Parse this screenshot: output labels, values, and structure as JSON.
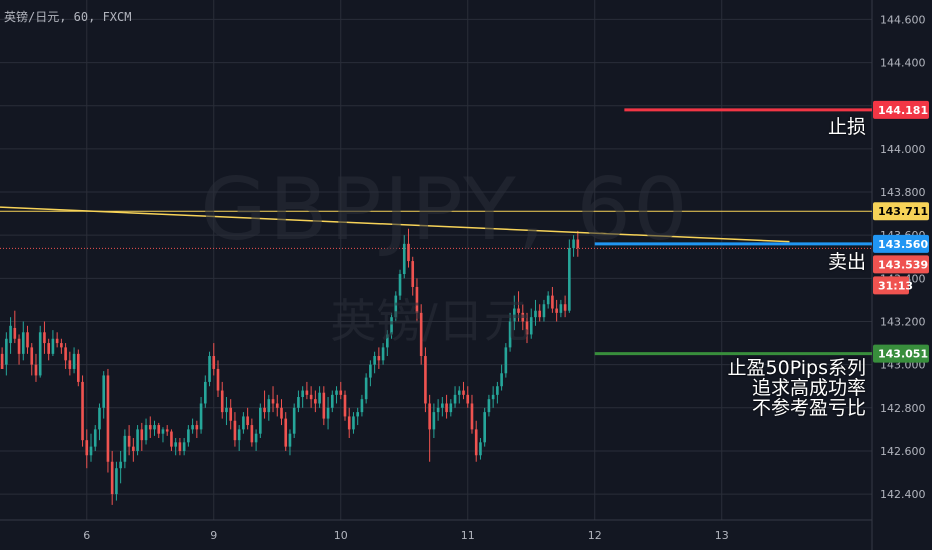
{
  "symbol_text": "英镑/日元, 60, FXCM",
  "watermark": {
    "main": "GBPJPY, 60",
    "sub": "英镑/日元"
  },
  "annotations": {
    "stop_loss": "止损",
    "sell": "卖出",
    "take_profit_lines": [
      "止盈50Pips系列",
      "追求高成功率",
      "不参考盈亏比"
    ]
  },
  "colors": {
    "background": "#131722",
    "grid": "#2a2e39",
    "up": "#26a69a",
    "down": "#ef5350",
    "stop_loss": "#f23645",
    "sell": "#2196f3",
    "take_profit": "#388e3c",
    "trendline": "#f7d358",
    "resistance": "#f7d358",
    "current_price": "#ef5350",
    "axis_text": "#b2b5be"
  },
  "chart_data": {
    "type": "candlestick",
    "title": "GBPJPY, 60",
    "xlabel": "",
    "ylabel": "",
    "ylim": [
      142.28,
      144.69
    ],
    "y_ticks": [
      142.4,
      142.6,
      142.8,
      143.0,
      143.2,
      143.4,
      143.6,
      143.8,
      144.0,
      144.2,
      144.4,
      144.6
    ],
    "y_tick_labels": [
      "142.400",
      "142.600",
      "142.800",
      "143.000",
      "143.200",
      "143.400",
      "143.600",
      "143.800",
      "144.000",
      "144.200",
      "144.400",
      "144.600"
    ],
    "x_tick_labels": [
      "6",
      "9",
      "10",
      "11",
      "12",
      "13"
    ],
    "x_tick_index": [
      20,
      50,
      80,
      110,
      140,
      170
    ],
    "total_slots": 206,
    "price_labels": [
      {
        "name": "stop-loss",
        "value": "144.181",
        "color": "#f23645",
        "text": "#ffffff"
      },
      {
        "name": "resistance",
        "value": "143.711",
        "color": "#f7d358",
        "text": "#000000"
      },
      {
        "name": "sell",
        "value": "143.560",
        "color": "#2196f3",
        "text": "#ffffff"
      },
      {
        "name": "current-price",
        "value": "143.539",
        "color": "#ef5350",
        "text": "#ffffff"
      },
      {
        "name": "countdown",
        "value": "31:13",
        "color": "#ef5350",
        "text": "#ffffff"
      },
      {
        "name": "take-profit",
        "value": "143.051",
        "color": "#388e3c",
        "text": "#ffffff"
      }
    ],
    "levels": {
      "stop_loss": 144.181,
      "resistance": 143.711,
      "sell": 143.56,
      "current": 143.539,
      "take_profit": 143.051
    },
    "trendline": {
      "start": [
        0,
        143.73
      ],
      "end": [
        186,
        143.57
      ]
    },
    "ohlc": [
      [
        143.05,
        143.08,
        142.98,
        142.98
      ],
      [
        143.0,
        143.15,
        142.95,
        143.12
      ],
      [
        143.1,
        143.22,
        143.05,
        143.18
      ],
      [
        143.17,
        143.25,
        143.1,
        143.12
      ],
      [
        143.12,
        143.14,
        143.0,
        143.05
      ],
      [
        143.05,
        143.2,
        143.02,
        143.15
      ],
      [
        143.15,
        143.18,
        143.05,
        143.08
      ],
      [
        143.08,
        143.1,
        142.95,
        143.0
      ],
      [
        143.0,
        143.05,
        142.92,
        142.95
      ],
      [
        142.95,
        143.18,
        142.94,
        143.15
      ],
      [
        143.15,
        143.2,
        143.05,
        143.1
      ],
      [
        143.1,
        143.12,
        143.02,
        143.05
      ],
      [
        143.05,
        143.16,
        143.04,
        143.12
      ],
      [
        143.12,
        143.15,
        143.08,
        143.1
      ],
      [
        143.1,
        143.12,
        143.05,
        143.08
      ],
      [
        143.08,
        143.1,
        142.98,
        143.02
      ],
      [
        143.02,
        143.06,
        142.95,
        142.98
      ],
      [
        142.98,
        143.08,
        142.96,
        143.05
      ],
      [
        143.05,
        143.07,
        142.9,
        142.92
      ],
      [
        142.92,
        142.95,
        142.62,
        142.65
      ],
      [
        142.65,
        142.7,
        142.52,
        142.58
      ],
      [
        142.58,
        142.68,
        142.55,
        142.62
      ],
      [
        142.62,
        142.72,
        142.6,
        142.7
      ],
      [
        142.7,
        142.82,
        142.65,
        142.8
      ],
      [
        142.8,
        142.97,
        142.75,
        142.95
      ],
      [
        142.95,
        142.98,
        142.5,
        142.55
      ],
      [
        142.55,
        142.6,
        142.35,
        142.4
      ],
      [
        142.4,
        142.55,
        142.37,
        142.52
      ],
      [
        142.52,
        142.6,
        142.45,
        142.55
      ],
      [
        142.55,
        142.7,
        142.52,
        142.67
      ],
      [
        142.67,
        142.72,
        142.58,
        142.62
      ],
      [
        142.62,
        142.66,
        142.55,
        142.6
      ],
      [
        142.6,
        142.72,
        142.58,
        142.7
      ],
      [
        142.7,
        142.73,
        142.6,
        142.65
      ],
      [
        142.65,
        142.75,
        142.63,
        142.72
      ],
      [
        142.72,
        142.76,
        142.66,
        142.7
      ],
      [
        142.7,
        142.74,
        142.67,
        142.72
      ],
      [
        142.72,
        142.73,
        142.66,
        142.68
      ],
      [
        142.68,
        142.71,
        142.64,
        142.7
      ],
      [
        142.7,
        142.72,
        142.67,
        142.69
      ],
      [
        142.69,
        142.7,
        142.6,
        142.62
      ],
      [
        142.62,
        142.66,
        142.58,
        142.64
      ],
      [
        142.64,
        142.66,
        142.58,
        142.6
      ],
      [
        142.6,
        142.66,
        142.58,
        142.64
      ],
      [
        142.64,
        142.72,
        142.62,
        142.7
      ],
      [
        142.7,
        142.75,
        142.68,
        142.72
      ],
      [
        142.72,
        142.74,
        142.66,
        142.7
      ],
      [
        142.7,
        142.85,
        142.68,
        142.82
      ],
      [
        142.82,
        142.95,
        142.8,
        142.92
      ],
      [
        142.92,
        143.06,
        142.9,
        143.04
      ],
      [
        143.04,
        143.1,
        142.95,
        142.98
      ],
      [
        142.98,
        143.02,
        142.85,
        142.88
      ],
      [
        142.88,
        142.92,
        142.75,
        142.78
      ],
      [
        142.78,
        142.85,
        142.72,
        142.8
      ],
      [
        142.8,
        142.84,
        142.7,
        142.74
      ],
      [
        142.74,
        142.78,
        142.62,
        142.65
      ],
      [
        142.65,
        142.72,
        142.6,
        142.7
      ],
      [
        142.7,
        142.78,
        142.68,
        142.76
      ],
      [
        142.76,
        142.8,
        142.7,
        142.72
      ],
      [
        142.72,
        142.75,
        142.62,
        142.64
      ],
      [
        142.64,
        142.7,
        142.6,
        142.68
      ],
      [
        142.68,
        142.82,
        142.66,
        142.8
      ],
      [
        142.8,
        142.88,
        142.75,
        142.78
      ],
      [
        142.78,
        142.86,
        142.74,
        142.84
      ],
      [
        142.84,
        142.9,
        142.78,
        142.82
      ],
      [
        142.82,
        142.86,
        142.76,
        142.8
      ],
      [
        142.8,
        142.84,
        142.72,
        142.75
      ],
      [
        142.75,
        142.78,
        142.6,
        142.62
      ],
      [
        142.62,
        142.7,
        142.58,
        142.68
      ],
      [
        142.68,
        142.82,
        142.66,
        142.8
      ],
      [
        142.8,
        142.88,
        142.78,
        142.85
      ],
      [
        142.85,
        142.9,
        142.8,
        142.88
      ],
      [
        142.88,
        142.92,
        142.84,
        142.86
      ],
      [
        142.86,
        142.9,
        142.8,
        142.84
      ],
      [
        142.84,
        142.88,
        142.78,
        142.82
      ],
      [
        142.82,
        142.9,
        142.8,
        142.87
      ],
      [
        142.87,
        142.9,
        142.72,
        142.75
      ],
      [
        142.75,
        142.85,
        142.7,
        142.8
      ],
      [
        142.8,
        142.88,
        142.78,
        142.86
      ],
      [
        142.86,
        142.9,
        142.82,
        142.88
      ],
      [
        142.88,
        142.92,
        142.84,
        142.86
      ],
      [
        142.86,
        142.88,
        142.74,
        142.76
      ],
      [
        142.76,
        142.8,
        142.66,
        142.7
      ],
      [
        142.7,
        142.78,
        142.68,
        142.76
      ],
      [
        142.76,
        142.8,
        142.72,
        142.78
      ],
      [
        142.78,
        142.86,
        142.76,
        142.84
      ],
      [
        142.84,
        142.96,
        142.82,
        142.94
      ],
      [
        142.94,
        143.02,
        142.9,
        143.0
      ],
      [
        143.0,
        143.06,
        142.96,
        143.04
      ],
      [
        143.04,
        143.08,
        142.98,
        143.02
      ],
      [
        143.02,
        143.1,
        143.0,
        143.08
      ],
      [
        143.08,
        143.16,
        143.04,
        143.14
      ],
      [
        143.14,
        143.24,
        143.12,
        143.22
      ],
      [
        143.22,
        143.34,
        143.2,
        143.32
      ],
      [
        143.32,
        143.44,
        143.3,
        143.42
      ],
      [
        143.42,
        143.6,
        143.4,
        143.56
      ],
      [
        143.56,
        143.63,
        143.45,
        143.48
      ],
      [
        143.48,
        143.5,
        143.32,
        143.36
      ],
      [
        143.36,
        143.4,
        143.2,
        143.24
      ],
      [
        143.24,
        143.28,
        143.0,
        143.04
      ],
      [
        143.04,
        143.08,
        142.78,
        142.82
      ],
      [
        142.82,
        142.86,
        142.55,
        142.7
      ],
      [
        142.7,
        142.82,
        142.66,
        142.78
      ],
      [
        142.78,
        142.84,
        142.74,
        142.8
      ],
      [
        142.8,
        142.85,
        142.76,
        142.82
      ],
      [
        142.82,
        142.86,
        142.75,
        142.78
      ],
      [
        142.78,
        142.84,
        142.76,
        142.82
      ],
      [
        142.82,
        142.9,
        142.8,
        142.86
      ],
      [
        142.86,
        142.9,
        142.82,
        142.88
      ],
      [
        142.88,
        142.92,
        142.84,
        142.86
      ],
      [
        142.86,
        142.9,
        142.8,
        142.82
      ],
      [
        142.82,
        142.86,
        142.68,
        142.7
      ],
      [
        142.7,
        142.74,
        142.55,
        142.58
      ],
      [
        142.58,
        142.66,
        142.56,
        142.64
      ],
      [
        142.64,
        142.8,
        142.62,
        142.78
      ],
      [
        142.78,
        142.86,
        142.76,
        142.84
      ],
      [
        142.84,
        142.9,
        142.8,
        142.86
      ],
      [
        142.86,
        142.92,
        142.82,
        142.9
      ],
      [
        142.9,
        143.0,
        142.88,
        142.96
      ],
      [
        142.96,
        143.1,
        142.94,
        143.08
      ],
      [
        143.08,
        143.24,
        143.06,
        143.2
      ],
      [
        143.2,
        143.32,
        143.16,
        143.26
      ],
      [
        143.26,
        143.34,
        143.2,
        143.24
      ],
      [
        143.24,
        143.28,
        143.16,
        143.2
      ],
      [
        143.2,
        143.24,
        143.1,
        143.14
      ],
      [
        143.14,
        143.26,
        143.12,
        143.22
      ],
      [
        143.22,
        143.3,
        143.18,
        143.25
      ],
      [
        143.25,
        143.28,
        143.2,
        143.22
      ],
      [
        143.22,
        143.3,
        143.2,
        143.28
      ],
      [
        143.28,
        143.34,
        143.26,
        143.32
      ],
      [
        143.32,
        143.36,
        143.24,
        143.26
      ],
      [
        143.26,
        143.3,
        143.2,
        143.24
      ],
      [
        143.24,
        143.3,
        143.22,
        143.28
      ],
      [
        143.28,
        143.32,
        143.22,
        143.25
      ],
      [
        143.25,
        143.58,
        143.24,
        143.54
      ],
      [
        143.54,
        143.6,
        143.5,
        143.58
      ],
      [
        143.58,
        143.62,
        143.5,
        143.54
      ]
    ]
  }
}
